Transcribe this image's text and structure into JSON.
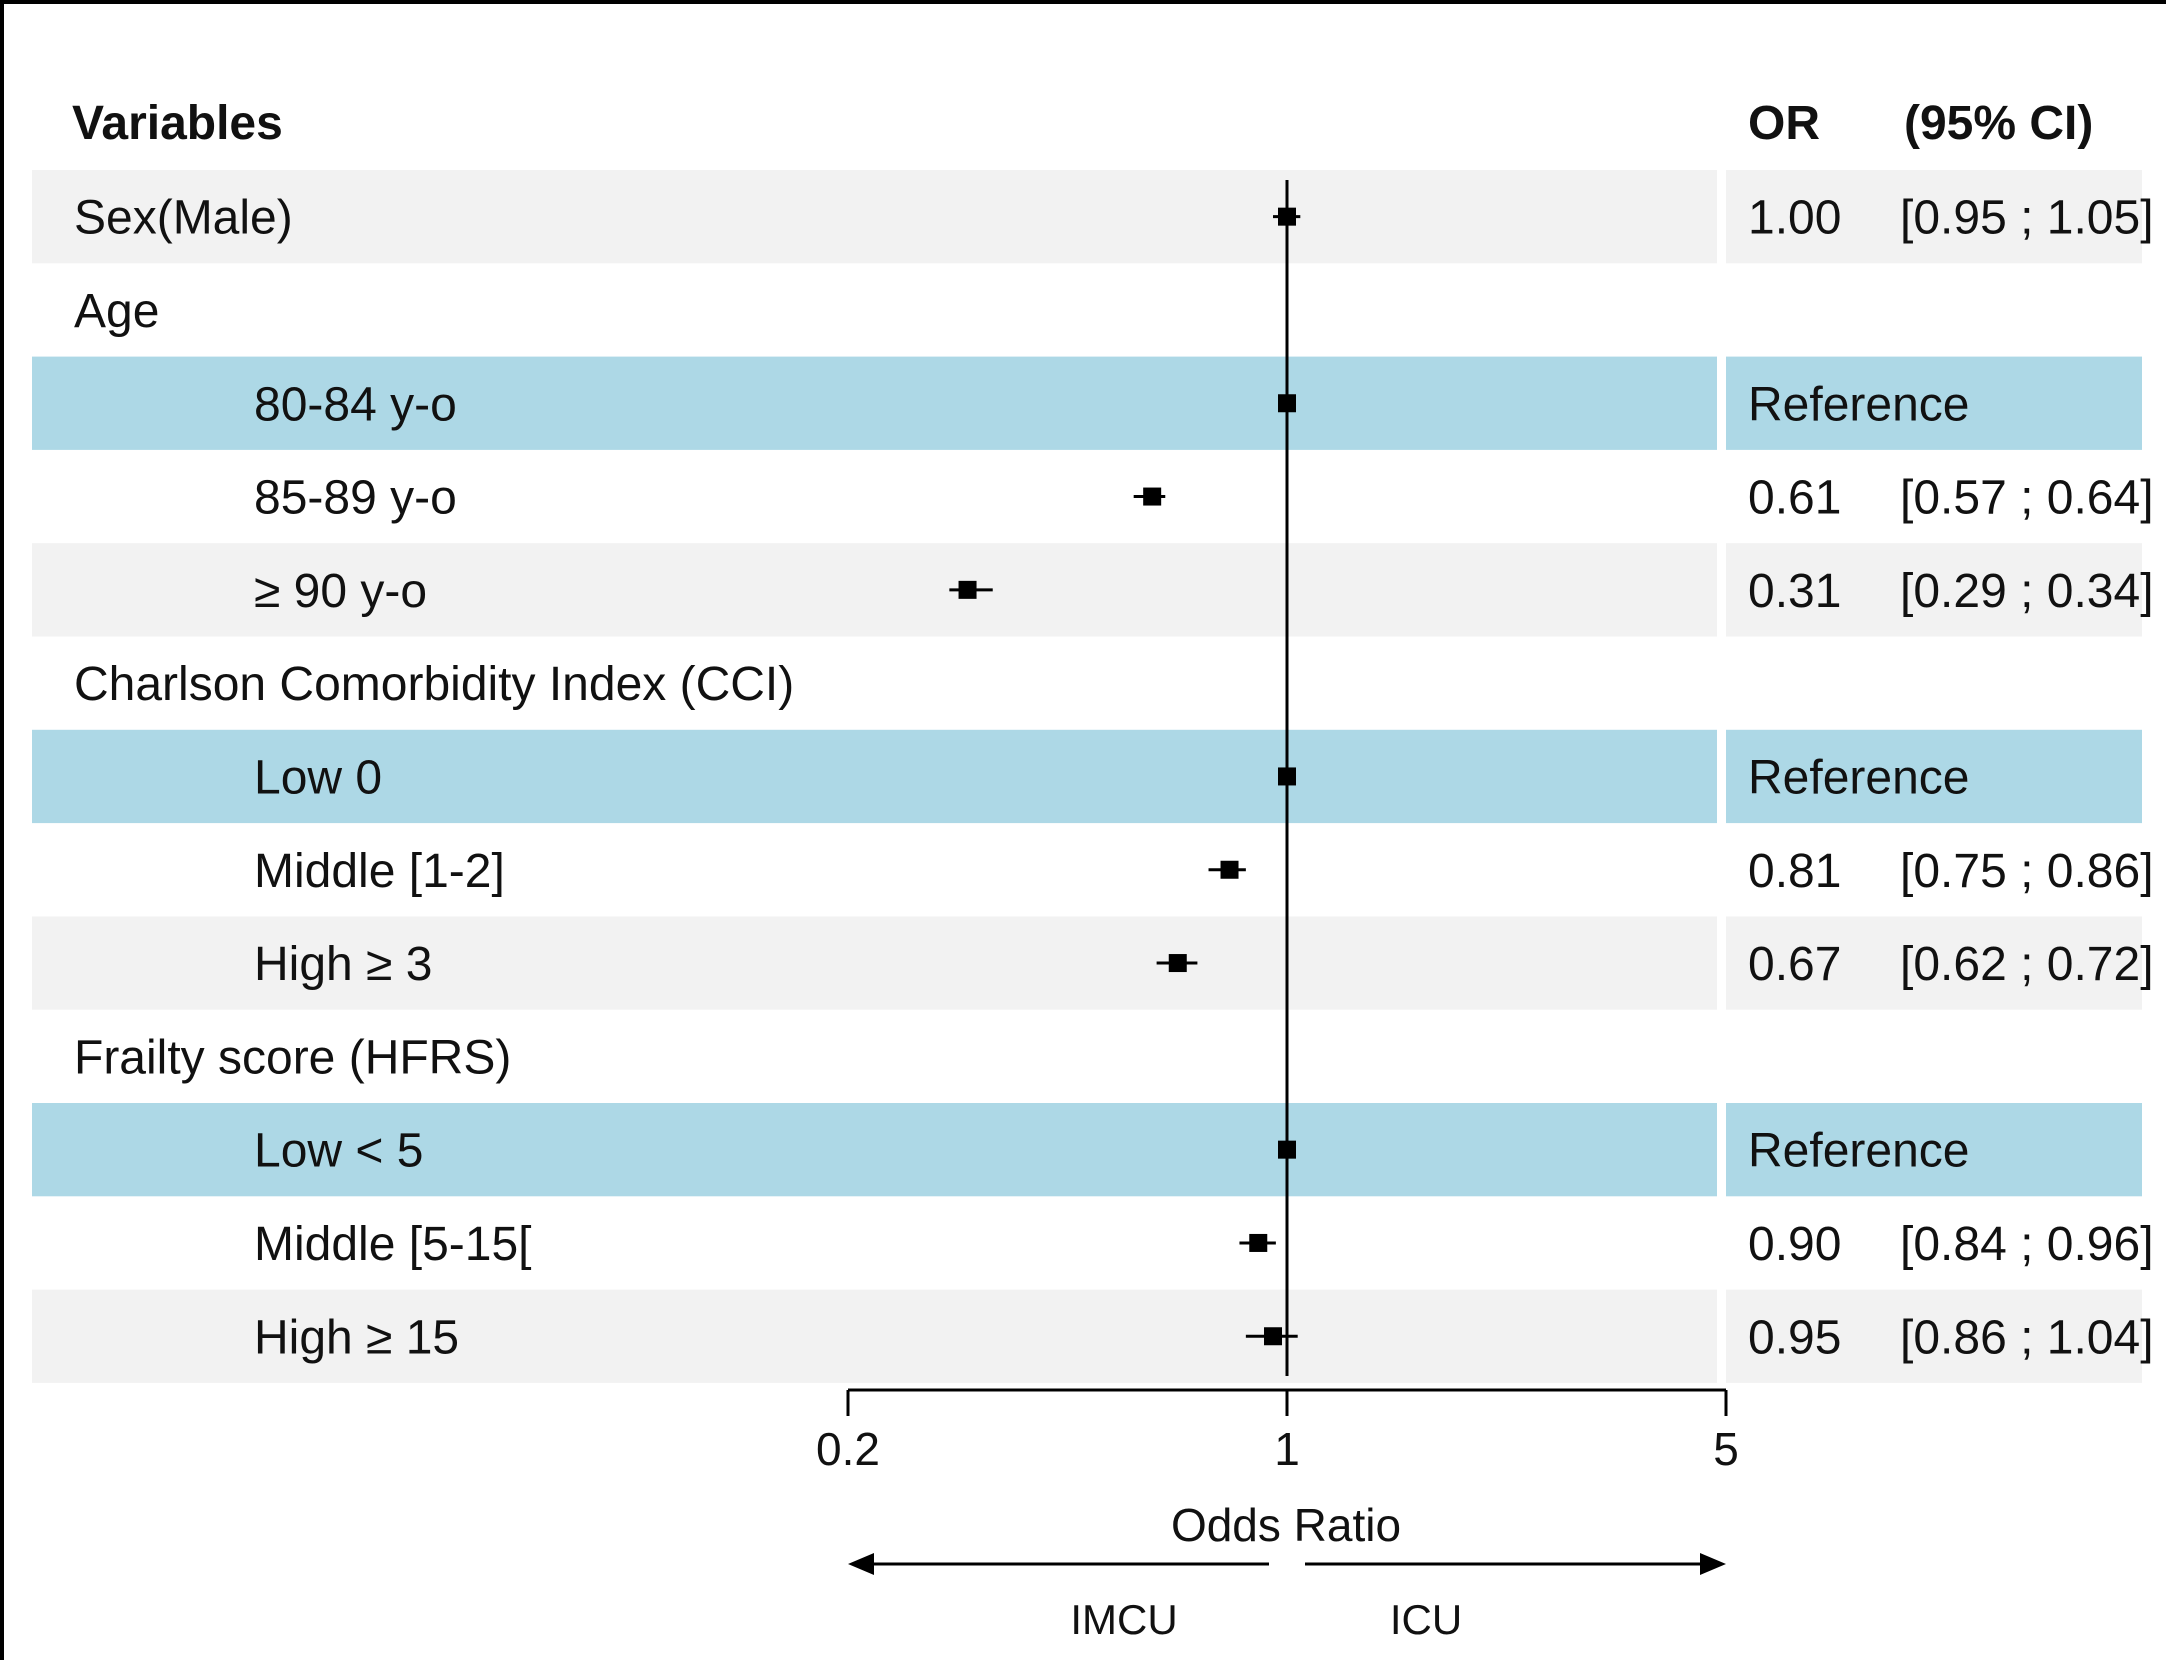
{
  "chart_data": {
    "type": "forest",
    "headers": {
      "variables": "Variables",
      "or": "OR",
      "ci": "(95% CI)"
    },
    "xlabel": "Odds Ratio",
    "x_scale": "log",
    "xlim": [
      0.2,
      5
    ],
    "x_ticks": [
      "0.2",
      "1",
      "5"
    ],
    "reference_line": 1,
    "direction_labels": {
      "left": "IMCU",
      "right": "ICU"
    },
    "rows": [
      {
        "label": "Sex(Male)",
        "indent": 0,
        "band": "gray",
        "or": 1.0,
        "lo": 0.95,
        "hi": 1.05,
        "or_text": "1.00",
        "ci_text": "[0.95 ; 1.05]"
      },
      {
        "label": "Age",
        "indent": 0,
        "band": "none",
        "or": null,
        "or_text": "",
        "ci_text": ""
      },
      {
        "label": "80-84 y-o",
        "indent": 1,
        "band": "blue",
        "or": 1,
        "lo": 1,
        "hi": 1,
        "or_text": "Reference",
        "ci_text": ""
      },
      {
        "label": "85-89 y-o",
        "indent": 1,
        "band": "none",
        "or": 0.61,
        "lo": 0.57,
        "hi": 0.64,
        "or_text": "0.61",
        "ci_text": "[0.57 ; 0.64]"
      },
      {
        "label": "≥ 90  y-o",
        "indent": 1,
        "band": "gray",
        "or": 0.31,
        "lo": 0.29,
        "hi": 0.34,
        "or_text": "0.31",
        "ci_text": "[0.29 ; 0.34]"
      },
      {
        "label": "Charlson Comorbidity  Index (CCI)",
        "indent": 0,
        "band": "none",
        "or": null,
        "or_text": "",
        "ci_text": ""
      },
      {
        "label": "Low 0",
        "indent": 1,
        "band": "blue",
        "or": 1,
        "lo": 1,
        "hi": 1,
        "or_text": "Reference",
        "ci_text": ""
      },
      {
        "label": "Middle [1-2]",
        "indent": 1,
        "band": "none",
        "or": 0.81,
        "lo": 0.75,
        "hi": 0.86,
        "or_text": "0.81",
        "ci_text": "[0.75 ; 0.86]"
      },
      {
        "label": "High ≥ 3",
        "indent": 1,
        "band": "gray",
        "or": 0.67,
        "lo": 0.62,
        "hi": 0.72,
        "or_text": "0.67",
        "ci_text": "[0.62 ; 0.72]"
      },
      {
        "label": "Frailty score (HFRS)",
        "indent": 0,
        "band": "none",
        "or": null,
        "or_text": "",
        "ci_text": ""
      },
      {
        "label": "Low < 5",
        "indent": 1,
        "band": "blue",
        "or": 1,
        "lo": 1,
        "hi": 1,
        "or_text": "Reference",
        "ci_text": ""
      },
      {
        "label": "Middle [5-15[",
        "indent": 1,
        "band": "none",
        "or": 0.9,
        "lo": 0.84,
        "hi": 0.96,
        "or_text": "0.90",
        "ci_text": "[0.84 ; 0.96]"
      },
      {
        "label": "High  ≥ 15",
        "indent": 1,
        "band": "gray",
        "or": 0.95,
        "lo": 0.86,
        "hi": 1.04,
        "or_text": "0.95",
        "ci_text": "[0.86 ; 1.04]"
      }
    ],
    "colors": {
      "band_gray": "#f2f2f2",
      "band_blue": "#add8e6",
      "ink": "#000000"
    }
  }
}
